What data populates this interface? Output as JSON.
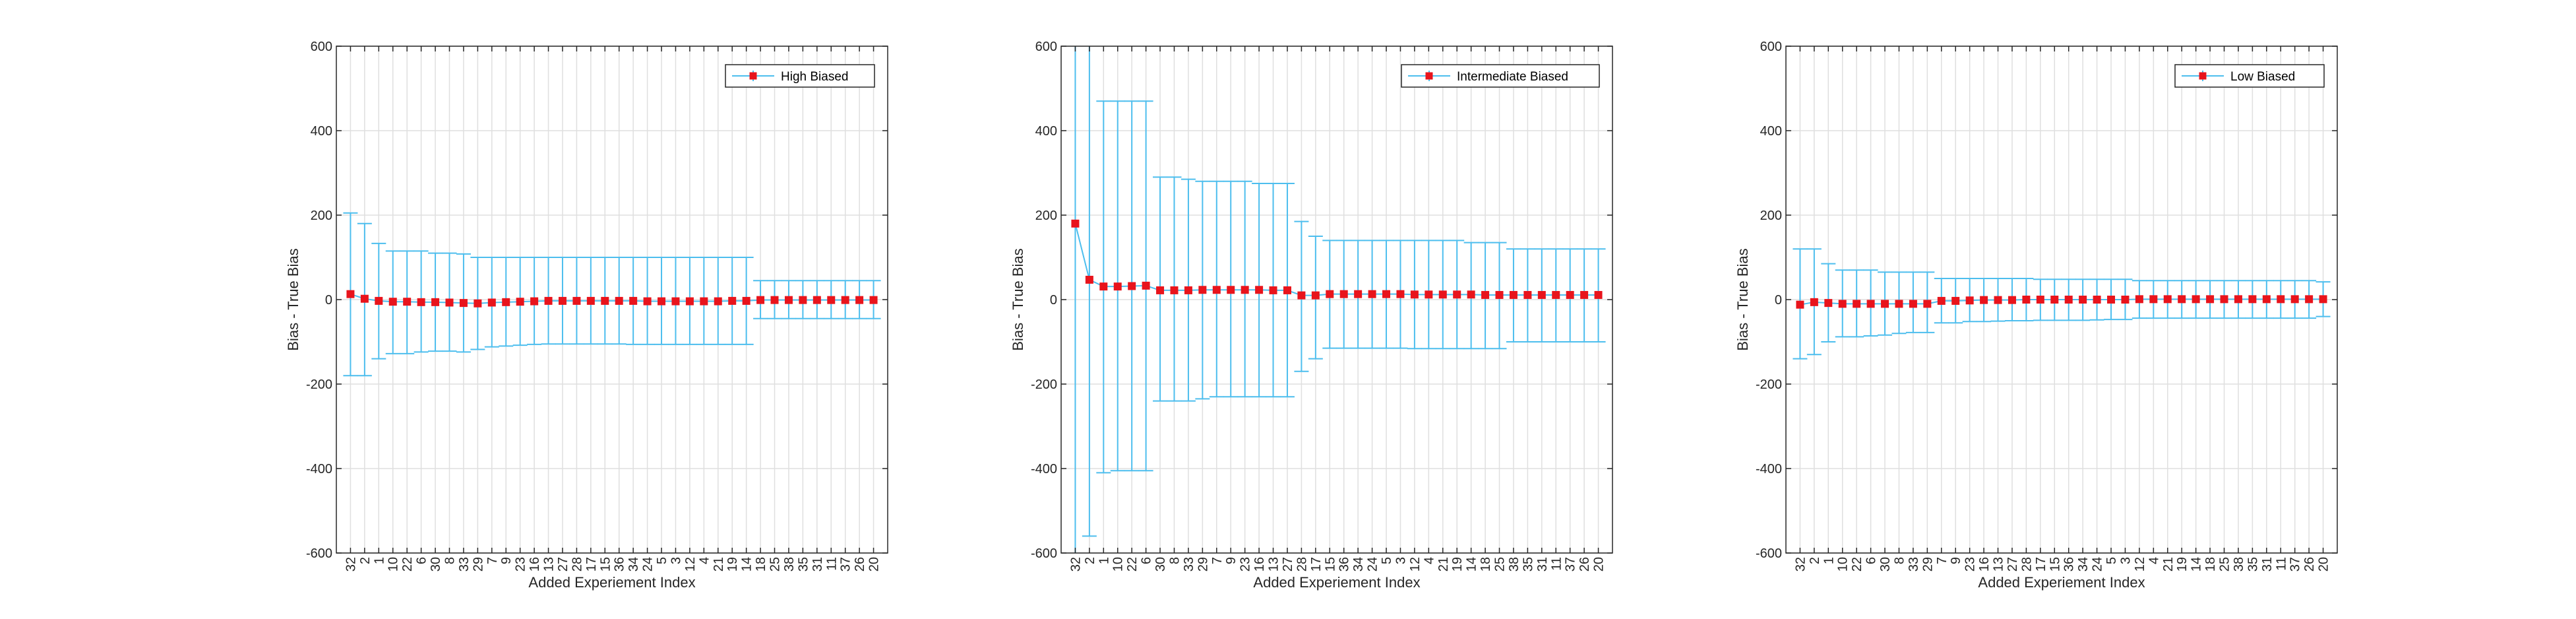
{
  "colors": {
    "errorbar": "#4DBEEE",
    "marker": "#E8141C",
    "grid": "#DFDFDF",
    "axis": "#262626",
    "text": "#262626"
  },
  "chart_data": [
    {
      "type": "errorbar",
      "ylabel": "Bias - True Bias",
      "xlabel": "Added Experiement Index",
      "ylim": [
        -600,
        600
      ],
      "yticks": [
        -600,
        -400,
        -200,
        0,
        200,
        400,
        600
      ],
      "grid": true,
      "legend": {
        "location": "top-right",
        "entries": [
          "High Biased"
        ]
      },
      "categories": [
        "32",
        "2",
        "1",
        "10",
        "22",
        "6",
        "30",
        "8",
        "33",
        "29",
        "7",
        "9",
        "23",
        "16",
        "13",
        "27",
        "28",
        "17",
        "15",
        "36",
        "34",
        "24",
        "5",
        "3",
        "12",
        "4",
        "21",
        "19",
        "14",
        "18",
        "25",
        "38",
        "35",
        "31",
        "11",
        "37",
        "26",
        "20"
      ],
      "series": [
        {
          "name": "High Biased",
          "values": [
            13,
            2,
            -3,
            -5,
            -5,
            -6,
            -6,
            -7,
            -8,
            -9,
            -7,
            -6,
            -5,
            -4,
            -3,
            -3,
            -3,
            -3,
            -3,
            -3,
            -3,
            -4,
            -4,
            -4,
            -4,
            -4,
            -4,
            -3,
            -3,
            -1,
            -1,
            -1,
            -1,
            -1,
            -1,
            -1,
            -1,
            -1
          ],
          "upper": [
            205,
            180,
            133,
            115,
            115,
            115,
            110,
            110,
            108,
            100,
            100,
            100,
            100,
            100,
            100,
            100,
            100,
            100,
            100,
            100,
            100,
            100,
            100,
            100,
            100,
            100,
            100,
            100,
            100,
            45,
            45,
            45,
            45,
            45,
            45,
            45,
            45,
            45
          ],
          "lower": [
            -180,
            -180,
            -140,
            -128,
            -128,
            -124,
            -122,
            -122,
            -124,
            -118,
            -112,
            -110,
            -108,
            -106,
            -105,
            -105,
            -105,
            -105,
            -105,
            -105,
            -106,
            -106,
            -106,
            -106,
            -106,
            -106,
            -106,
            -106,
            -106,
            -45,
            -45,
            -45,
            -45,
            -45,
            -45,
            -45,
            -45,
            -45
          ]
        }
      ]
    },
    {
      "type": "errorbar",
      "ylabel": "Bias - True Bias",
      "xlabel": "Added Experiement Index",
      "ylim": [
        -600,
        600
      ],
      "yticks": [
        -600,
        -400,
        -200,
        0,
        200,
        400,
        600
      ],
      "grid": true,
      "legend": {
        "location": "top-right",
        "entries": [
          "Intermediate Biased"
        ]
      },
      "categories": [
        "32",
        "2",
        "1",
        "10",
        "22",
        "6",
        "30",
        "8",
        "33",
        "29",
        "7",
        "9",
        "23",
        "16",
        "13",
        "27",
        "28",
        "17",
        "15",
        "36",
        "34",
        "24",
        "5",
        "3",
        "12",
        "4",
        "21",
        "19",
        "14",
        "18",
        "25",
        "38",
        "35",
        "31",
        "11",
        "37",
        "26",
        "20"
      ],
      "series": [
        {
          "name": "Intermediate Biased",
          "values": [
            180,
            47,
            31,
            31,
            32,
            33,
            22,
            22,
            22,
            23,
            23,
            23,
            23,
            23,
            22,
            22,
            10,
            10,
            13,
            13,
            13,
            13,
            13,
            13,
            12,
            12,
            12,
            12,
            12,
            11,
            11,
            11,
            11,
            11,
            11,
            11,
            11,
            11
          ],
          "upper": [
            600,
            600,
            470,
            470,
            470,
            470,
            290,
            290,
            285,
            280,
            280,
            280,
            280,
            275,
            275,
            275,
            185,
            150,
            140,
            140,
            140,
            140,
            140,
            140,
            140,
            140,
            140,
            140,
            135,
            135,
            135,
            120,
            120,
            120,
            120,
            120,
            120,
            120
          ],
          "lower": [
            -600,
            -560,
            -410,
            -405,
            -405,
            -405,
            -240,
            -240,
            -240,
            -235,
            -230,
            -230,
            -230,
            -230,
            -230,
            -230,
            -170,
            -140,
            -115,
            -115,
            -115,
            -115,
            -115,
            -115,
            -116,
            -116,
            -116,
            -116,
            -116,
            -116,
            -116,
            -100,
            -100,
            -100,
            -100,
            -100,
            -100,
            -100
          ]
        }
      ]
    },
    {
      "type": "errorbar",
      "ylabel": "Bias - True Bias",
      "xlabel": "Added Experiement Index",
      "ylim": [
        -600,
        600
      ],
      "yticks": [
        -600,
        -400,
        -200,
        0,
        200,
        400,
        600
      ],
      "grid": true,
      "legend": {
        "location": "top-right",
        "entries": [
          "Low Biased"
        ]
      },
      "categories": [
        "32",
        "2",
        "1",
        "10",
        "22",
        "6",
        "30",
        "8",
        "33",
        "29",
        "7",
        "9",
        "23",
        "16",
        "13",
        "27",
        "28",
        "17",
        "15",
        "36",
        "34",
        "24",
        "5",
        "3",
        "12",
        "4",
        "21",
        "19",
        "14",
        "18",
        "25",
        "38",
        "35",
        "31",
        "11",
        "37",
        "26",
        "20"
      ],
      "series": [
        {
          "name": "Low Biased",
          "values": [
            -12,
            -6,
            -8,
            -10,
            -10,
            -10,
            -10,
            -10,
            -10,
            -10,
            -3,
            -3,
            -2,
            -1,
            -1,
            -1,
            0,
            0,
            0,
            0,
            0,
            0,
            0,
            0,
            1,
            1,
            1,
            1,
            1,
            1,
            1,
            1,
            1,
            1,
            1,
            1,
            1,
            1
          ],
          "upper": [
            120,
            120,
            85,
            70,
            70,
            70,
            65,
            65,
            65,
            65,
            50,
            50,
            50,
            50,
            50,
            50,
            50,
            48,
            48,
            48,
            48,
            48,
            48,
            48,
            45,
            45,
            45,
            45,
            45,
            45,
            45,
            45,
            45,
            45,
            45,
            45,
            45,
            42
          ],
          "lower": [
            -140,
            -130,
            -100,
            -88,
            -88,
            -86,
            -84,
            -80,
            -78,
            -78,
            -55,
            -55,
            -52,
            -52,
            -51,
            -50,
            -50,
            -49,
            -49,
            -49,
            -49,
            -48,
            -47,
            -47,
            -44,
            -44,
            -44,
            -44,
            -44,
            -44,
            -44,
            -44,
            -44,
            -44,
            -44,
            -44,
            -44,
            -40
          ]
        }
      ]
    }
  ]
}
